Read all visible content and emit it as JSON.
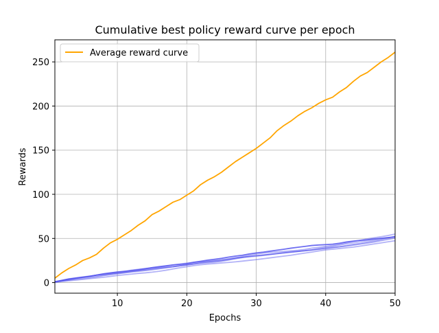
{
  "chart_data": {
    "type": "line",
    "title": "Cumulative best policy reward curve per epoch",
    "xlabel": "Epochs",
    "ylabel": "Rewards",
    "xlim": [
      1,
      50
    ],
    "ylim": [
      -12,
      275
    ],
    "xticks": [
      10,
      20,
      30,
      40,
      50
    ],
    "yticks": [
      0,
      50,
      100,
      150,
      200,
      250
    ],
    "grid": true,
    "legend": {
      "placement": "top-left",
      "entries": [
        "Average reward curve"
      ]
    },
    "colors": {
      "average": "#FFA500",
      "runs": "#5555EE"
    },
    "x": [
      1,
      2,
      3,
      4,
      5,
      6,
      7,
      8,
      9,
      10,
      11,
      12,
      13,
      14,
      15,
      16,
      17,
      18,
      19,
      20,
      21,
      22,
      23,
      24,
      25,
      26,
      27,
      28,
      29,
      30,
      31,
      32,
      33,
      34,
      35,
      36,
      37,
      38,
      39,
      40,
      41,
      42,
      43,
      44,
      45,
      46,
      47,
      48,
      49,
      50
    ],
    "series": [
      {
        "name": "Average reward curve",
        "role": "average",
        "values": [
          5,
          11,
          16,
          20,
          25,
          28,
          32,
          39,
          45,
          49,
          54,
          59,
          65,
          70,
          77,
          81,
          86,
          91,
          94,
          99,
          104,
          111,
          116,
          120,
          125,
          131,
          137,
          142,
          147,
          152,
          158,
          164,
          172,
          178,
          183,
          189,
          194,
          198,
          203,
          207,
          210,
          216,
          221,
          228,
          234,
          238,
          244,
          250,
          255,
          261
        ]
      },
      {
        "role": "run",
        "opacity": 0.85,
        "values": [
          1,
          2.5,
          4,
          5,
          6,
          7,
          8.5,
          10,
          11,
          12,
          12.8,
          13.6,
          14.5,
          15.6,
          17,
          18,
          19,
          20,
          20.6,
          21.4,
          23,
          24.2,
          25.4,
          26.4,
          27.5,
          28.8,
          30,
          31,
          32.4,
          33.6,
          34.5,
          35.6,
          36.7,
          37.8,
          39,
          40,
          41,
          42,
          42.6,
          43,
          43.5,
          44.6,
          46,
          47,
          47.8,
          48.5,
          49.4,
          50.2,
          51,
          51.8
        ]
      },
      {
        "role": "run",
        "opacity": 0.45,
        "values": [
          0.8,
          2.2,
          3.6,
          5,
          6.2,
          7,
          8.5,
          9.5,
          10.5,
          11.5,
          12.5,
          14,
          15,
          16,
          16.8,
          17.5,
          18.5,
          20,
          21,
          22,
          23,
          23.6,
          24,
          24.5,
          25.2,
          26.5,
          28,
          29.5,
          31,
          32.3,
          33.4,
          34.2,
          34.8,
          35.3,
          36,
          36.6,
          37.6,
          39,
          40,
          41,
          42,
          43.4,
          45,
          46.5,
          48,
          49.5,
          50.8,
          52,
          53.3,
          55
        ]
      },
      {
        "role": "run",
        "opacity": 0.4,
        "values": [
          0.5,
          2,
          3,
          4.5,
          5.8,
          6.8,
          7.5,
          8.5,
          9.6,
          10.5,
          11.4,
          12.4,
          13.4,
          14.4,
          15.4,
          16.2,
          17,
          18,
          19,
          19.8,
          21,
          22.2,
          23.4,
          24.2,
          25,
          26,
          27.4,
          28.6,
          29.6,
          30.5,
          31,
          31.8,
          32.8,
          33.6,
          34.4,
          35.2,
          36,
          37,
          38.6,
          40,
          41,
          42.5,
          44,
          45,
          46.2,
          47.4,
          48.4,
          49.6,
          50.8,
          52
        ]
      },
      {
        "role": "run",
        "opacity": 0.5,
        "values": [
          0.6,
          1.8,
          2.8,
          3.8,
          4.6,
          5.4,
          6.5,
          7.8,
          9,
          10,
          11,
          12,
          12.8,
          13.6,
          14.5,
          15.6,
          16.8,
          18,
          19,
          20,
          21,
          21.8,
          22.5,
          23.2,
          24.2,
          25.5,
          27,
          28.4,
          29.6,
          30.6,
          31.3,
          32,
          32.7,
          33.6,
          34.5,
          35.4,
          36.2,
          37,
          38,
          39,
          39.8,
          40.5,
          41.4,
          42.5,
          43.6,
          44.8,
          46,
          47.5,
          49,
          50.4
        ]
      },
      {
        "role": "run",
        "opacity": 0.45,
        "values": [
          0.9,
          2.6,
          4.2,
          5.4,
          6.4,
          7.4,
          8.4,
          9.2,
          10,
          10.8,
          11.6,
          12.6,
          13.6,
          14.6,
          15.6,
          16.6,
          17.4,
          18,
          19,
          20.2,
          21.6,
          23,
          24,
          25,
          26,
          27,
          28,
          28.6,
          29.2,
          29.8,
          30.8,
          32,
          33,
          34,
          34.8,
          35.4,
          36,
          36.8,
          37.6,
          38.4,
          39.4,
          40.6,
          42,
          43.2,
          44.4,
          45.8,
          47.2,
          48.8,
          50.5,
          52.5
        ]
      },
      {
        "role": "run",
        "opacity": 0.45,
        "values": [
          0.4,
          1.2,
          2,
          2.8,
          3.6,
          4.4,
          5.2,
          6,
          7,
          8,
          8.8,
          9.6,
          10.4,
          11,
          11.8,
          12.8,
          14,
          15.4,
          16.8,
          18,
          19.2,
          20.2,
          21,
          21.6,
          22.2,
          22.8,
          23.5,
          24.3,
          25.2,
          26,
          27,
          28,
          29,
          30,
          31,
          32.2,
          33.4,
          34.6,
          35.8,
          37,
          37.8,
          38.6,
          39.4,
          40.2,
          41.4,
          42.6,
          43.8,
          45,
          46.2,
          47.4
        ]
      }
    ]
  }
}
